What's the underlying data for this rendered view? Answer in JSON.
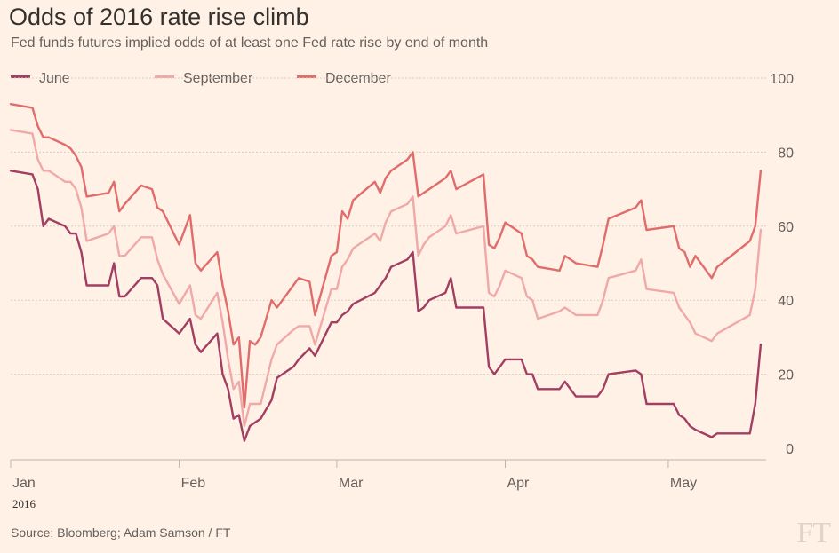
{
  "header": {
    "title": "Odds of 2016 rate rise climb",
    "subtitle": "Fed funds futures implied odds of at least one Fed rate rise by end of month"
  },
  "footer": {
    "source": "Source: Bloomberg; Adam Samson / FT",
    "logo": "FT"
  },
  "colors": {
    "background": "#fff1e5",
    "june": "#a13e62",
    "september": "#f0a9a9",
    "december": "#e06c6b",
    "grid": "#d9cdc2"
  },
  "chart_data": {
    "type": "line",
    "title": "Odds of 2016 rate rise climb",
    "subtitle": "Fed funds futures implied odds of at least one Fed rate rise by end of month",
    "ylim": [
      0,
      100
    ],
    "y_ticks": [
      0,
      20,
      40,
      60,
      80,
      100
    ],
    "grid": true,
    "legend_position": "top-left",
    "x_ticks": [
      "Jan",
      "Feb",
      "Mar",
      "Apr",
      "May"
    ],
    "x_year_label": "2016",
    "x_range": [
      "2016-01-01",
      "2016-05-19"
    ],
    "series": [
      {
        "name": "June",
        "color": "#a13e62",
        "points": [
          [
            "2016-01-01",
            75
          ],
          [
            "2016-01-05",
            74
          ],
          [
            "2016-01-06",
            70
          ],
          [
            "2016-01-07",
            60
          ],
          [
            "2016-01-08",
            62
          ],
          [
            "2016-01-11",
            60
          ],
          [
            "2016-01-12",
            58
          ],
          [
            "2016-01-13",
            58
          ],
          [
            "2016-01-14",
            53
          ],
          [
            "2016-01-15",
            44
          ],
          [
            "2016-01-19",
            44
          ],
          [
            "2016-01-20",
            50
          ],
          [
            "2016-01-21",
            41
          ],
          [
            "2016-01-22",
            41
          ],
          [
            "2016-01-25",
            46
          ],
          [
            "2016-01-27",
            46
          ],
          [
            "2016-01-28",
            44
          ],
          [
            "2016-01-29",
            35
          ],
          [
            "2016-02-01",
            31
          ],
          [
            "2016-02-03",
            35
          ],
          [
            "2016-02-04",
            28
          ],
          [
            "2016-02-05",
            26
          ],
          [
            "2016-02-08",
            31
          ],
          [
            "2016-02-09",
            20
          ],
          [
            "2016-02-10",
            16
          ],
          [
            "2016-02-11",
            8
          ],
          [
            "2016-02-12",
            9
          ],
          [
            "2016-02-13",
            2
          ],
          [
            "2016-02-14",
            6
          ],
          [
            "2016-02-15",
            7
          ],
          [
            "2016-02-16",
            8
          ],
          [
            "2016-02-18",
            13
          ],
          [
            "2016-02-19",
            19
          ],
          [
            "2016-02-22",
            22
          ],
          [
            "2016-02-23",
            24
          ],
          [
            "2016-02-25",
            27
          ],
          [
            "2016-02-26",
            25
          ],
          [
            "2016-02-29",
            34
          ],
          [
            "2016-03-01",
            34
          ],
          [
            "2016-03-02",
            36
          ],
          [
            "2016-03-03",
            37
          ],
          [
            "2016-03-04",
            39
          ],
          [
            "2016-03-08",
            42
          ],
          [
            "2016-03-09",
            44
          ],
          [
            "2016-03-10",
            46
          ],
          [
            "2016-03-11",
            49
          ],
          [
            "2016-03-14",
            51
          ],
          [
            "2016-03-15",
            53
          ],
          [
            "2016-03-16",
            37
          ],
          [
            "2016-03-17",
            38
          ],
          [
            "2016-03-18",
            40
          ],
          [
            "2016-03-21",
            42
          ],
          [
            "2016-03-22",
            46
          ],
          [
            "2016-03-23",
            38
          ],
          [
            "2016-03-28",
            38
          ],
          [
            "2016-03-29",
            22
          ],
          [
            "2016-03-30",
            20
          ],
          [
            "2016-03-31",
            22
          ],
          [
            "2016-04-01",
            24
          ],
          [
            "2016-04-04",
            24
          ],
          [
            "2016-04-05",
            20
          ],
          [
            "2016-04-06",
            20
          ],
          [
            "2016-04-07",
            16
          ],
          [
            "2016-04-11",
            16
          ],
          [
            "2016-04-12",
            18
          ],
          [
            "2016-04-13",
            16
          ],
          [
            "2016-04-14",
            14
          ],
          [
            "2016-04-18",
            14
          ],
          [
            "2016-04-19",
            16
          ],
          [
            "2016-04-20",
            20
          ],
          [
            "2016-04-25",
            21
          ],
          [
            "2016-04-26",
            20
          ],
          [
            "2016-04-27",
            12
          ],
          [
            "2016-05-02",
            12
          ],
          [
            "2016-05-03",
            9
          ],
          [
            "2016-05-04",
            8
          ],
          [
            "2016-05-05",
            6
          ],
          [
            "2016-05-06",
            5
          ],
          [
            "2016-05-09",
            3
          ],
          [
            "2016-05-10",
            4
          ],
          [
            "2016-05-16",
            4
          ],
          [
            "2016-05-17",
            12
          ],
          [
            "2016-05-18",
            28
          ]
        ]
      },
      {
        "name": "September",
        "color": "#f0a9a9",
        "points": [
          [
            "2016-01-01",
            86
          ],
          [
            "2016-01-05",
            85
          ],
          [
            "2016-01-06",
            78
          ],
          [
            "2016-01-07",
            75
          ],
          [
            "2016-01-08",
            75
          ],
          [
            "2016-01-11",
            72
          ],
          [
            "2016-01-12",
            72
          ],
          [
            "2016-01-13",
            70
          ],
          [
            "2016-01-14",
            65
          ],
          [
            "2016-01-15",
            56
          ],
          [
            "2016-01-19",
            58
          ],
          [
            "2016-01-20",
            60
          ],
          [
            "2016-01-21",
            52
          ],
          [
            "2016-01-22",
            52
          ],
          [
            "2016-01-25",
            57
          ],
          [
            "2016-01-27",
            57
          ],
          [
            "2016-01-28",
            51
          ],
          [
            "2016-01-29",
            47
          ],
          [
            "2016-02-01",
            39
          ],
          [
            "2016-02-03",
            44
          ],
          [
            "2016-02-04",
            36
          ],
          [
            "2016-02-05",
            35
          ],
          [
            "2016-02-08",
            42
          ],
          [
            "2016-02-09",
            34
          ],
          [
            "2016-02-10",
            24
          ],
          [
            "2016-02-11",
            16
          ],
          [
            "2016-02-12",
            18
          ],
          [
            "2016-02-13",
            6
          ],
          [
            "2016-02-14",
            12
          ],
          [
            "2016-02-15",
            12
          ],
          [
            "2016-02-16",
            12
          ],
          [
            "2016-02-18",
            24
          ],
          [
            "2016-02-19",
            28
          ],
          [
            "2016-02-22",
            32
          ],
          [
            "2016-02-23",
            33
          ],
          [
            "2016-02-25",
            33
          ],
          [
            "2016-02-26",
            28
          ],
          [
            "2016-02-29",
            43
          ],
          [
            "2016-03-01",
            43
          ],
          [
            "2016-03-02",
            49
          ],
          [
            "2016-03-03",
            51
          ],
          [
            "2016-03-04",
            54
          ],
          [
            "2016-03-08",
            58
          ],
          [
            "2016-03-09",
            56
          ],
          [
            "2016-03-10",
            61
          ],
          [
            "2016-03-11",
            64
          ],
          [
            "2016-03-14",
            66
          ],
          [
            "2016-03-15",
            68
          ],
          [
            "2016-03-16",
            52
          ],
          [
            "2016-03-17",
            55
          ],
          [
            "2016-03-18",
            57
          ],
          [
            "2016-03-21",
            60
          ],
          [
            "2016-03-22",
            63
          ],
          [
            "2016-03-23",
            58
          ],
          [
            "2016-03-28",
            60
          ],
          [
            "2016-03-29",
            42
          ],
          [
            "2016-03-30",
            41
          ],
          [
            "2016-03-31",
            44
          ],
          [
            "2016-04-01",
            48
          ],
          [
            "2016-04-04",
            46
          ],
          [
            "2016-04-05",
            41
          ],
          [
            "2016-04-06",
            40
          ],
          [
            "2016-04-07",
            35
          ],
          [
            "2016-04-11",
            37
          ],
          [
            "2016-04-12",
            38
          ],
          [
            "2016-04-13",
            37
          ],
          [
            "2016-04-14",
            36
          ],
          [
            "2016-04-18",
            36
          ],
          [
            "2016-04-19",
            40
          ],
          [
            "2016-04-20",
            46
          ],
          [
            "2016-04-25",
            48
          ],
          [
            "2016-04-26",
            51
          ],
          [
            "2016-04-27",
            43
          ],
          [
            "2016-05-02",
            42
          ],
          [
            "2016-05-03",
            38
          ],
          [
            "2016-05-04",
            36
          ],
          [
            "2016-05-05",
            34
          ],
          [
            "2016-05-06",
            31
          ],
          [
            "2016-05-09",
            29
          ],
          [
            "2016-05-10",
            31
          ],
          [
            "2016-05-16",
            36
          ],
          [
            "2016-05-17",
            43
          ],
          [
            "2016-05-18",
            59
          ]
        ]
      },
      {
        "name": "December",
        "color": "#e06c6b",
        "points": [
          [
            "2016-01-01",
            93
          ],
          [
            "2016-01-05",
            92
          ],
          [
            "2016-01-06",
            87
          ],
          [
            "2016-01-07",
            84
          ],
          [
            "2016-01-08",
            84
          ],
          [
            "2016-01-11",
            82
          ],
          [
            "2016-01-12",
            81
          ],
          [
            "2016-01-13",
            79
          ],
          [
            "2016-01-14",
            76
          ],
          [
            "2016-01-15",
            68
          ],
          [
            "2016-01-19",
            69
          ],
          [
            "2016-01-20",
            72
          ],
          [
            "2016-01-21",
            64
          ],
          [
            "2016-01-22",
            66
          ],
          [
            "2016-01-25",
            71
          ],
          [
            "2016-01-27",
            70
          ],
          [
            "2016-01-28",
            65
          ],
          [
            "2016-01-29",
            64
          ],
          [
            "2016-02-01",
            55
          ],
          [
            "2016-02-03",
            63
          ],
          [
            "2016-02-04",
            50
          ],
          [
            "2016-02-05",
            48
          ],
          [
            "2016-02-08",
            53
          ],
          [
            "2016-02-09",
            44
          ],
          [
            "2016-02-10",
            37
          ],
          [
            "2016-02-11",
            28
          ],
          [
            "2016-02-12",
            30
          ],
          [
            "2016-02-13",
            11
          ],
          [
            "2016-02-14",
            29
          ],
          [
            "2016-02-15",
            28
          ],
          [
            "2016-02-16",
            30
          ],
          [
            "2016-02-18",
            40
          ],
          [
            "2016-02-19",
            38
          ],
          [
            "2016-02-22",
            44
          ],
          [
            "2016-02-23",
            46
          ],
          [
            "2016-02-25",
            45
          ],
          [
            "2016-02-26",
            36
          ],
          [
            "2016-02-29",
            52
          ],
          [
            "2016-03-01",
            53
          ],
          [
            "2016-03-02",
            64
          ],
          [
            "2016-03-03",
            62
          ],
          [
            "2016-03-04",
            67
          ],
          [
            "2016-03-08",
            72
          ],
          [
            "2016-03-09",
            69
          ],
          [
            "2016-03-10",
            73
          ],
          [
            "2016-03-11",
            75
          ],
          [
            "2016-03-14",
            78
          ],
          [
            "2016-03-15",
            80
          ],
          [
            "2016-03-16",
            68
          ],
          [
            "2016-03-17",
            69
          ],
          [
            "2016-03-18",
            70
          ],
          [
            "2016-03-21",
            73
          ],
          [
            "2016-03-22",
            75
          ],
          [
            "2016-03-23",
            70
          ],
          [
            "2016-03-28",
            74
          ],
          [
            "2016-03-29",
            55
          ],
          [
            "2016-03-30",
            54
          ],
          [
            "2016-03-31",
            57
          ],
          [
            "2016-04-01",
            61
          ],
          [
            "2016-04-04",
            58
          ],
          [
            "2016-04-05",
            52
          ],
          [
            "2016-04-06",
            51
          ],
          [
            "2016-04-07",
            49
          ],
          [
            "2016-04-11",
            48
          ],
          [
            "2016-04-12",
            52
          ],
          [
            "2016-04-13",
            51
          ],
          [
            "2016-04-14",
            50
          ],
          [
            "2016-04-18",
            49
          ],
          [
            "2016-04-19",
            55
          ],
          [
            "2016-04-20",
            62
          ],
          [
            "2016-04-25",
            65
          ],
          [
            "2016-04-26",
            67
          ],
          [
            "2016-04-27",
            59
          ],
          [
            "2016-05-02",
            60
          ],
          [
            "2016-05-03",
            54
          ],
          [
            "2016-05-04",
            53
          ],
          [
            "2016-05-05",
            49
          ],
          [
            "2016-05-06",
            52
          ],
          [
            "2016-05-09",
            46
          ],
          [
            "2016-05-10",
            49
          ],
          [
            "2016-05-16",
            56
          ],
          [
            "2016-05-17",
            60
          ],
          [
            "2016-05-18",
            75
          ]
        ]
      }
    ]
  }
}
